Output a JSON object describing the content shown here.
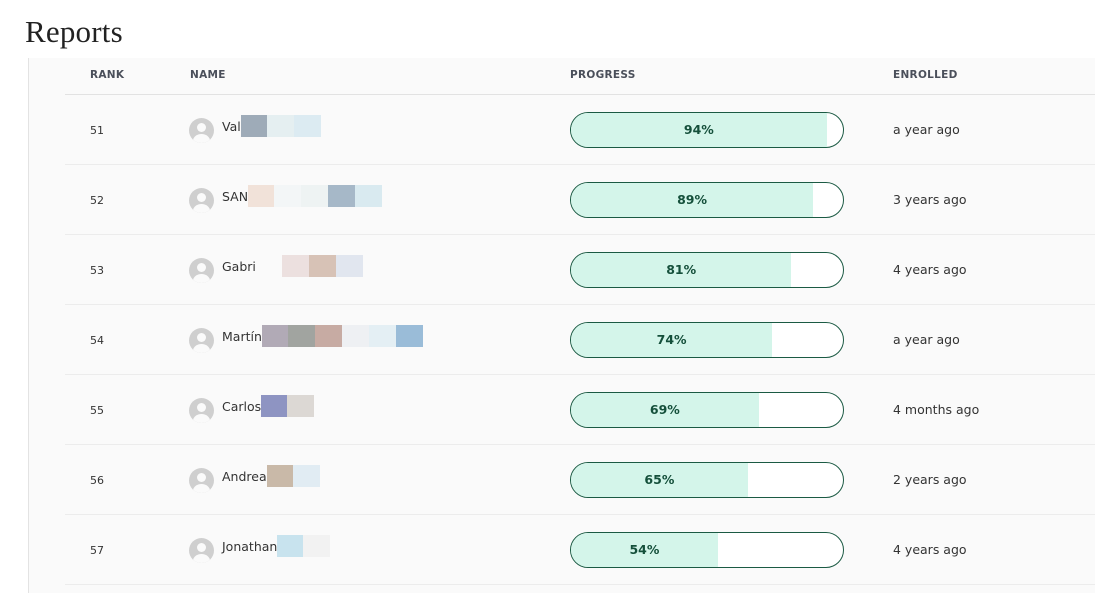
{
  "page": {
    "title": "Reports"
  },
  "table": {
    "headers": {
      "rank": "RANK",
      "name": "NAME",
      "progress": "PROGRESS",
      "enrolled": "ENROLLED"
    },
    "rows": [
      {
        "rank": "51",
        "name": "Val",
        "progress": 94,
        "progress_label": "94%",
        "enrolled": "a year ago",
        "redaction": [
          "#9eabb8",
          "#e5eff1",
          "#dcebf2"
        ]
      },
      {
        "rank": "52",
        "name": "SAN",
        "progress": 89,
        "progress_label": "89%",
        "enrolled": "3 years ago",
        "redaction": [
          "#f1e2d9",
          "#f3f6f7",
          "#eef3f3",
          "#a6b8c8",
          "#d9eaf0"
        ]
      },
      {
        "rank": "53",
        "name": "Gabri",
        "progress": 81,
        "progress_label": "81%",
        "enrolled": "4 years ago",
        "redaction": [
          "#fafafa",
          "#ece0df",
          "#d7c2b6",
          "#e1e6ef"
        ]
      },
      {
        "rank": "54",
        "name": "Martín",
        "progress": 74,
        "progress_label": "74%",
        "enrolled": "a year ago",
        "redaction": [
          "#b1aab6",
          "#a1a4a0",
          "#c7aba3",
          "#eef0f3",
          "#e4eff4",
          "#9abcd8"
        ]
      },
      {
        "rank": "55",
        "name": "Carlos",
        "progress": 69,
        "progress_label": "69%",
        "enrolled": "4 months ago",
        "redaction": [
          "#8e94c2",
          "#dcd8d4"
        ]
      },
      {
        "rank": "56",
        "name": "Andrea",
        "progress": 65,
        "progress_label": "65%",
        "enrolled": "2 years ago",
        "redaction": [
          "#c9b9a8",
          "#e1ecf3"
        ]
      },
      {
        "rank": "57",
        "name": "Jonathan",
        "progress": 54,
        "progress_label": "54%",
        "enrolled": "4 years ago",
        "redaction": [
          "#c8e3ee",
          "#f2f2f2"
        ]
      }
    ]
  },
  "colors": {
    "progress_fill": "#d4f5ea",
    "progress_border": "#1b5a43",
    "progress_text": "#15503b"
  }
}
